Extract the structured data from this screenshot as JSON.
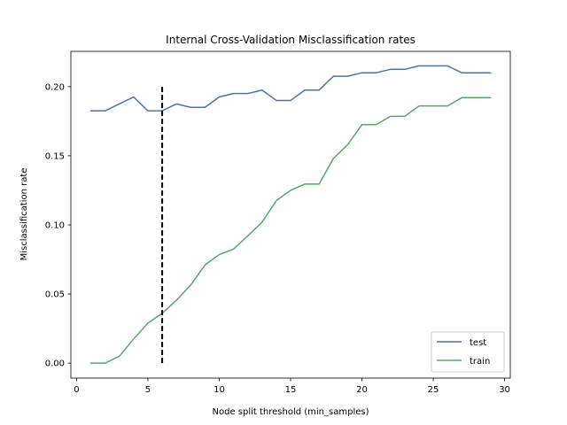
{
  "chart_data": {
    "type": "line",
    "title": "Internal Cross-Validation Misclassification rates",
    "xlabel": "Node split threshold (min_samples)",
    "ylabel": "Misclassification rate",
    "xlim": [
      -0.4,
      30.4
    ],
    "ylim": [
      -0.0108,
      0.2255
    ],
    "xticks": [
      0,
      5,
      10,
      15,
      20,
      25,
      30
    ],
    "xtick_labels": [
      "0",
      "5",
      "10",
      "15",
      "20",
      "25",
      "30"
    ],
    "yticks": [
      0.0,
      0.05,
      0.1,
      0.15,
      0.2
    ],
    "ytick_labels": [
      "0.00",
      "0.05",
      "0.10",
      "0.15",
      "0.20"
    ],
    "grid": false,
    "legend_position": "lower-right",
    "x": [
      1,
      2,
      3,
      4,
      5,
      6,
      7,
      8,
      9,
      10,
      11,
      12,
      13,
      14,
      15,
      16,
      17,
      18,
      19,
      20,
      21,
      22,
      23,
      24,
      25,
      26,
      27,
      28,
      29
    ],
    "series": [
      {
        "name": "test",
        "color": "#4c72b0",
        "values": [
          0.1825,
          0.1825,
          0.1875,
          0.1925,
          0.1825,
          0.1825,
          0.1875,
          0.185,
          0.185,
          0.1925,
          0.195,
          0.195,
          0.1975,
          0.19,
          0.19,
          0.1975,
          0.1975,
          0.2075,
          0.2075,
          0.21,
          0.21,
          0.2125,
          0.2125,
          0.215,
          0.215,
          0.215,
          0.21,
          0.21,
          0.21
        ]
      },
      {
        "name": "train",
        "color": "#55a868",
        "values": [
          0.0,
          0.0,
          0.005,
          0.0175,
          0.029,
          0.036,
          0.0455,
          0.0565,
          0.071,
          0.0785,
          0.0825,
          0.092,
          0.102,
          0.1175,
          0.125,
          0.1295,
          0.1295,
          0.148,
          0.158,
          0.1725,
          0.1725,
          0.1785,
          0.1785,
          0.186,
          0.186,
          0.186,
          0.192,
          0.192,
          0.192
        ]
      }
    ],
    "reference_line": {
      "style": "dashed",
      "color": "#000000",
      "x": 6,
      "y_from": 0.0,
      "y_to": 0.2
    }
  }
}
